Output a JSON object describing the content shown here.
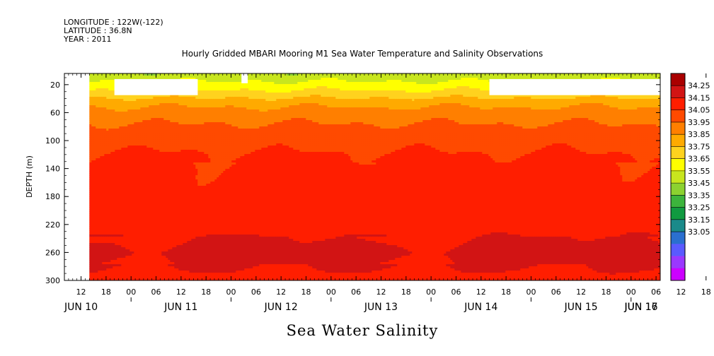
{
  "header": {
    "longitude": "LONGITUDE : 122W(-122)",
    "latitude": "LATITUDE : 36.8N",
    "year": "YEAR : 2011"
  },
  "chart_data": {
    "type": "heatmap",
    "title": "Hourly Gridded MBARI Mooring M1 Sea Water Temperature and Salinity Observations",
    "xlabel": "",
    "ylabel": "DEPTH (m)",
    "variable_label": "Sea Water Salinity",
    "x_ticks_hours": [
      "12",
      "18",
      "00",
      "06",
      "12",
      "18",
      "00",
      "06",
      "12",
      "18",
      "00",
      "06",
      "12",
      "18",
      "00",
      "06",
      "12",
      "18",
      "00",
      "06",
      "12",
      "18",
      "00",
      "06",
      "12",
      "18",
      "00",
      "06"
    ],
    "x_day_labels": [
      "JUN 10",
      "JUN 11",
      "JUN 12",
      "JUN 13",
      "JUN 14",
      "JUN 15",
      "JUN 16",
      "JUN 17"
    ],
    "x_range_hours_since_jun10_00": [
      8,
      151
    ],
    "data_start_hour": 14,
    "y_ticks": [
      20,
      60,
      100,
      140,
      180,
      220,
      260,
      300
    ],
    "ylim": [
      300,
      4
    ],
    "y_reversed": true,
    "colorbar": {
      "levels": [
        33.05,
        33.15,
        33.25,
        33.35,
        33.45,
        33.55,
        33.65,
        33.75,
        33.85,
        33.95,
        34.05,
        34.15,
        34.25
      ],
      "labels": [
        "34.25",
        "34.15",
        "34.05",
        "33.95",
        "33.85",
        "33.75",
        "33.65",
        "33.55",
        "33.45",
        "33.35",
        "33.25",
        "33.15",
        "33.05"
      ],
      "colors": [
        "#cc00ff",
        "#9a38ff",
        "#5a5aff",
        "#2a6fd0",
        "#1a8a8a",
        "#109a40",
        "#3cb43c",
        "#8cd230",
        "#c8e61e",
        "#ffff00",
        "#ffd21e",
        "#ffaa00",
        "#ff7f00",
        "#ff4a00",
        "#ff1e00",
        "#d21414",
        "#aa0000"
      ]
    },
    "depth_profile": [
      {
        "depth": 5,
        "salinity": 33.58
      },
      {
        "depth": 15,
        "salinity": 33.66
      },
      {
        "depth": 30,
        "salinity": 33.78
      },
      {
        "depth": 45,
        "salinity": 33.92
      },
      {
        "depth": 60,
        "salinity": 34.0
      },
      {
        "depth": 80,
        "salinity": 34.07
      },
      {
        "depth": 100,
        "salinity": 34.12
      },
      {
        "depth": 120,
        "salinity": 34.16
      },
      {
        "depth": 140,
        "salinity": 34.18
      },
      {
        "depth": 160,
        "salinity": 34.19
      },
      {
        "depth": 180,
        "salinity": 34.2
      },
      {
        "depth": 200,
        "salinity": 34.2
      },
      {
        "depth": 220,
        "salinity": 34.22
      },
      {
        "depth": 240,
        "salinity": 34.25
      },
      {
        "depth": 260,
        "salinity": 34.28
      },
      {
        "depth": 280,
        "salinity": 34.25
      },
      {
        "depth": 300,
        "salinity": 34.22
      }
    ],
    "missing_blocks": [
      {
        "hour_start": 20,
        "hour_end": 40,
        "depth_top": 12,
        "depth_bottom": 35
      },
      {
        "hour_start": 50.5,
        "hour_end": 52,
        "depth_top": 4,
        "depth_bottom": 18
      },
      {
        "hour_start": 110,
        "hour_end": 151,
        "depth_top": 12,
        "depth_bottom": 35
      }
    ],
    "grid": false,
    "legend_position": "right"
  }
}
